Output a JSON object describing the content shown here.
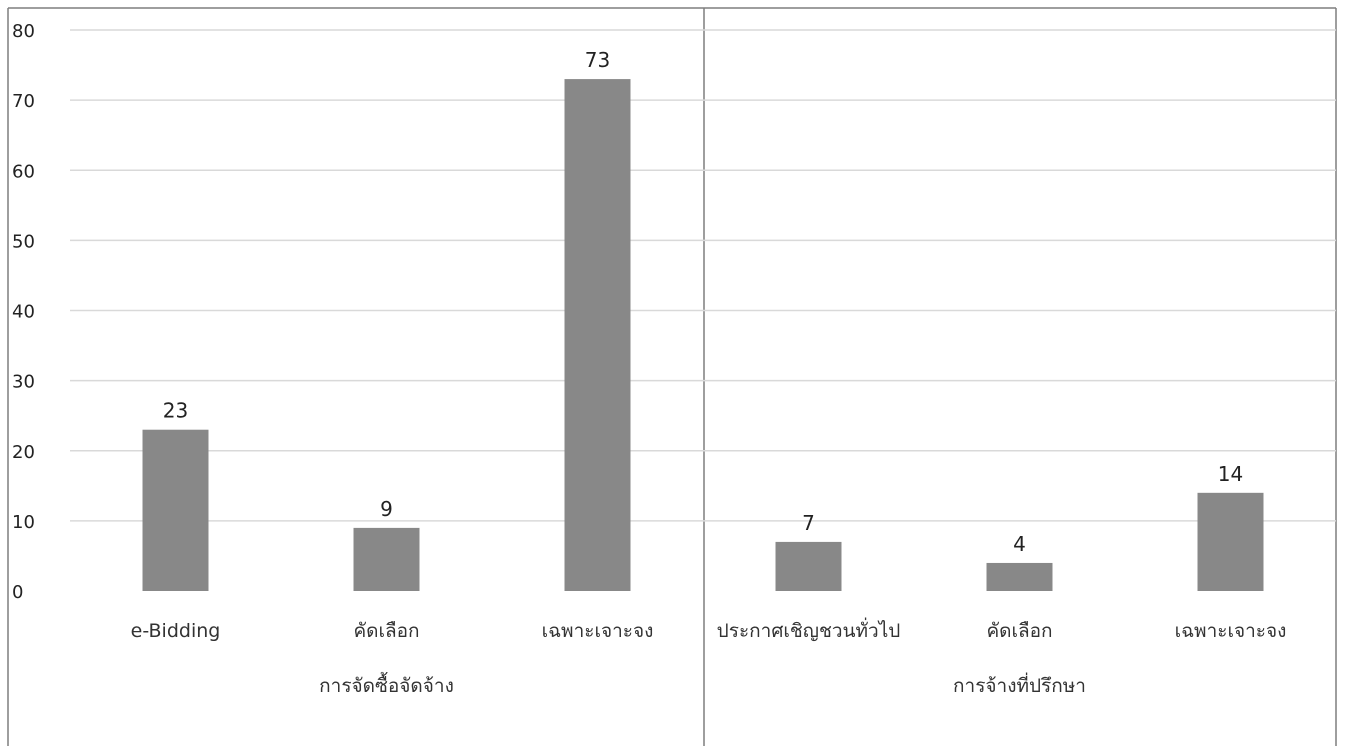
{
  "chart_data": {
    "type": "bar",
    "ylim": [
      0,
      80
    ],
    "y_ticks": [
      "0",
      "10",
      "20",
      "30",
      "40",
      "50",
      "60",
      "70",
      "80"
    ],
    "grid": true,
    "bar_color": "#888888",
    "grid_color": "#d9d9d9",
    "groups": [
      {
        "label": "การจัดซื้อจัดจ้าง",
        "categories": [
          "e-Bidding",
          "คัดเลือก",
          "เฉพาะเจาะจง"
        ],
        "values": [
          23,
          9,
          73
        ]
      },
      {
        "label": "การจ้างที่ปรึกษา",
        "categories": [
          "ประกาศเชิญชวนทั่วไป",
          "คัดเลือก",
          "เฉพาะเจาะจง"
        ],
        "values": [
          7,
          4,
          14
        ]
      }
    ]
  }
}
